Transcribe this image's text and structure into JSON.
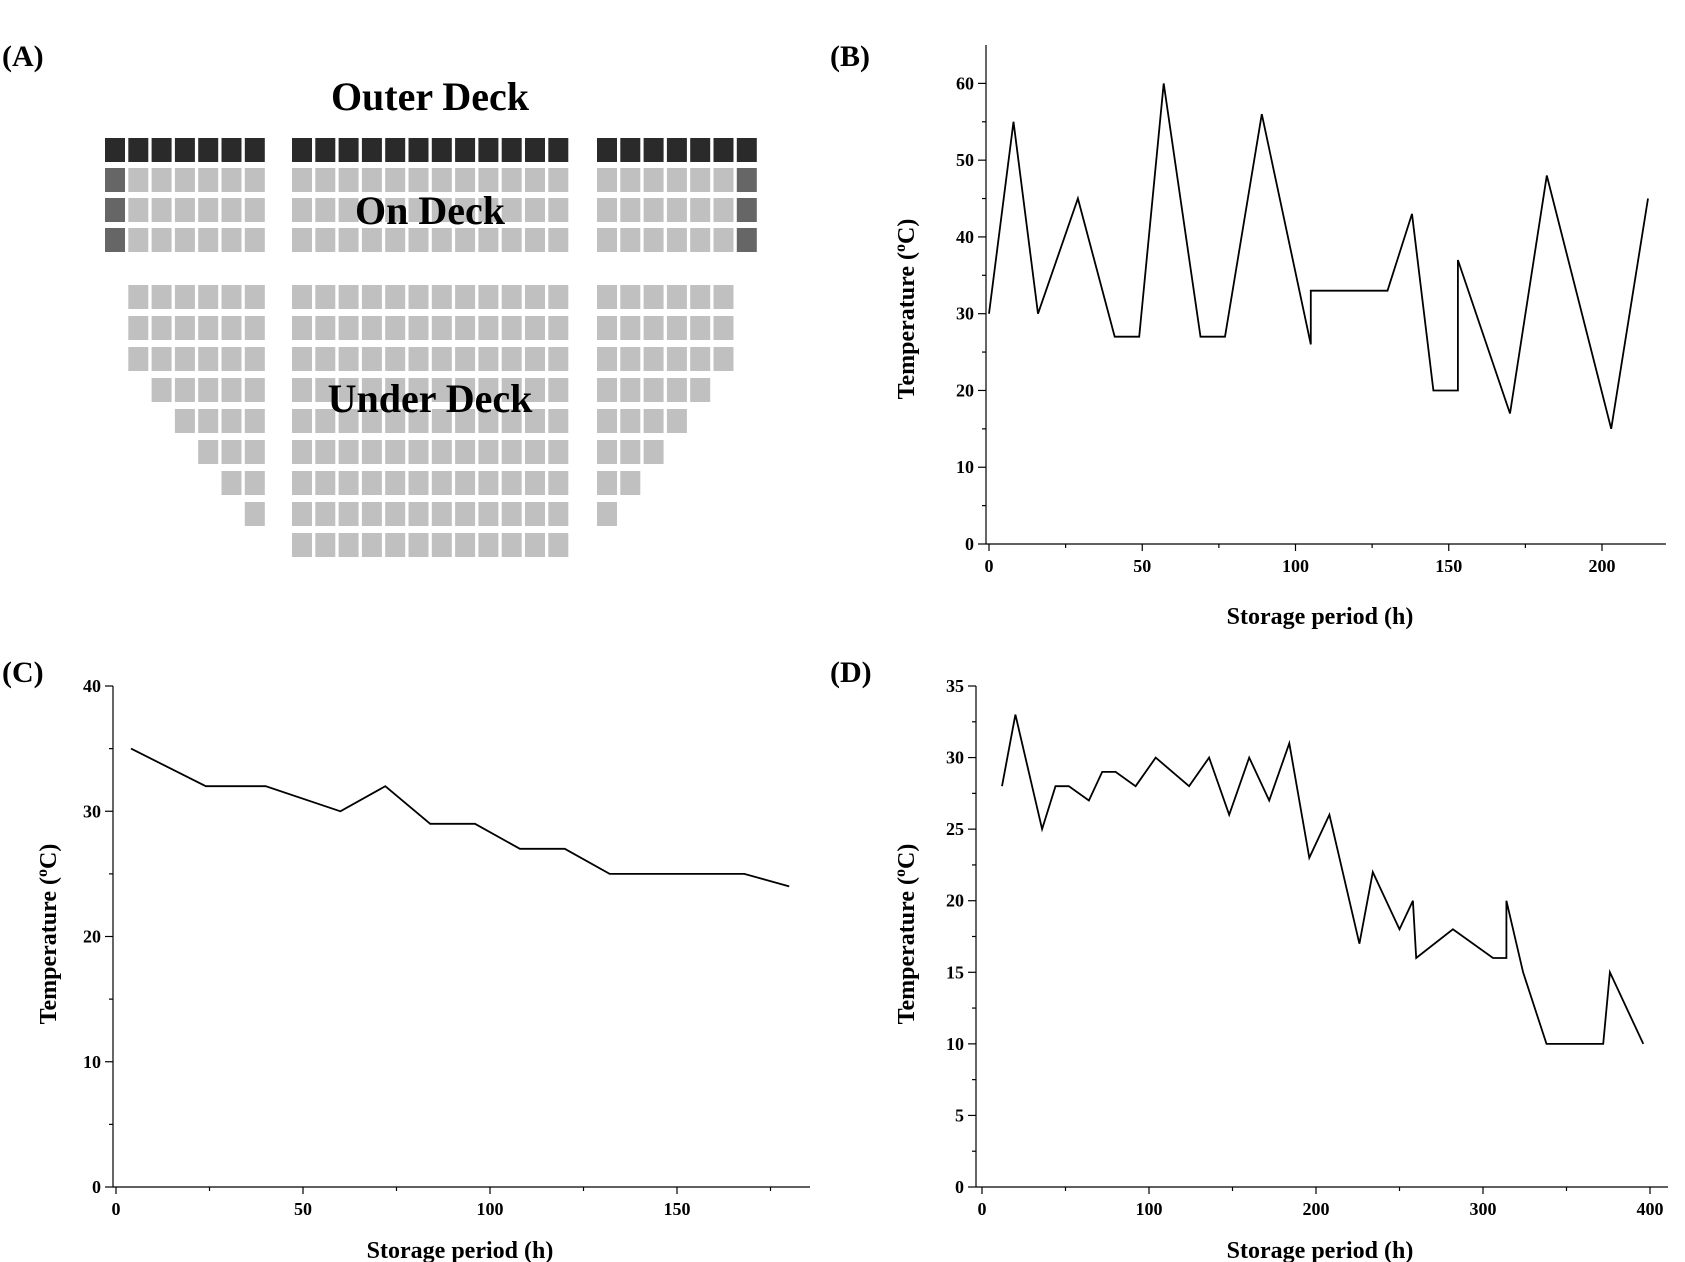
{
  "panel_a": {
    "label": "(A)",
    "outer_deck_label": "Outer Deck",
    "on_deck_label": "On Deck",
    "under_deck_label": "Under Deck",
    "colors": {
      "outer": "#2a2a2a",
      "outer_side": "#666666",
      "container": "#c0c0c0"
    }
  },
  "chart_data": [
    {
      "id": "B",
      "label": "(B)",
      "type": "line",
      "title": "",
      "xlabel": "Storage period (h)",
      "ylabel_main": "Temperature (",
      "ylabel_sup": "o",
      "ylabel_end": "C)",
      "xlim": [
        0,
        220
      ],
      "ylim": [
        0,
        65
      ],
      "xticks": [
        0,
        50,
        100,
        150,
        200
      ],
      "yticks": [
        0,
        10,
        20,
        30,
        40,
        50,
        60
      ],
      "series": [
        {
          "name": "Temperature",
          "x": [
            0,
            8,
            16,
            29,
            41,
            49,
            57,
            69,
            77,
            89,
            105,
            105,
            110,
            130,
            138,
            145,
            153,
            153,
            170,
            182,
            203,
            215
          ],
          "y": [
            30,
            55,
            30,
            45,
            27,
            27,
            60,
            27,
            27,
            56,
            26,
            33,
            33,
            33,
            43,
            20,
            20,
            37,
            17,
            48,
            15,
            45
          ]
        }
      ]
    },
    {
      "id": "C",
      "label": "(C)",
      "type": "line",
      "title": "",
      "xlabel": "Storage period (h)",
      "ylabel_main": "Temperature (",
      "ylabel_sup": "o",
      "ylabel_end": "C)",
      "xlim": [
        0,
        185
      ],
      "ylim": [
        0,
        40
      ],
      "xticks": [
        0,
        50,
        100,
        150
      ],
      "yticks": [
        0,
        10,
        20,
        30,
        40
      ],
      "series": [
        {
          "name": "Temperature",
          "x": [
            4,
            24,
            40,
            60,
            72,
            84,
            96,
            108,
            120,
            132,
            144,
            156,
            168,
            180
          ],
          "y": [
            35,
            32,
            32,
            30,
            32,
            29,
            29,
            27,
            27,
            25,
            25,
            25,
            25,
            24
          ]
        }
      ]
    },
    {
      "id": "D",
      "label": "(D)",
      "type": "line",
      "title": "",
      "xlabel": "Storage period (h)",
      "ylabel_main": "Temperature (",
      "ylabel_sup": "o",
      "ylabel_end": "C)",
      "xlim": [
        0,
        410
      ],
      "ylim": [
        0,
        35
      ],
      "xticks": [
        0,
        100,
        200,
        300,
        400
      ],
      "yticks": [
        0,
        5,
        10,
        15,
        20,
        25,
        30,
        35
      ],
      "series": [
        {
          "name": "Temperature",
          "x": [
            12,
            20,
            36,
            44,
            52,
            64,
            72,
            80,
            92,
            104,
            124,
            136,
            148,
            160,
            172,
            184,
            196,
            208,
            226,
            234,
            250,
            258,
            260,
            282,
            306,
            314,
            314,
            324,
            338,
            372,
            376,
            396
          ],
          "y": [
            28,
            33,
            25,
            28,
            28,
            27,
            29,
            29,
            28,
            30,
            28,
            30,
            26,
            30,
            27,
            31,
            23,
            26,
            17,
            22,
            18,
            20,
            16,
            18,
            16,
            16,
            20,
            15,
            10,
            10,
            15,
            10
          ]
        }
      ]
    }
  ]
}
